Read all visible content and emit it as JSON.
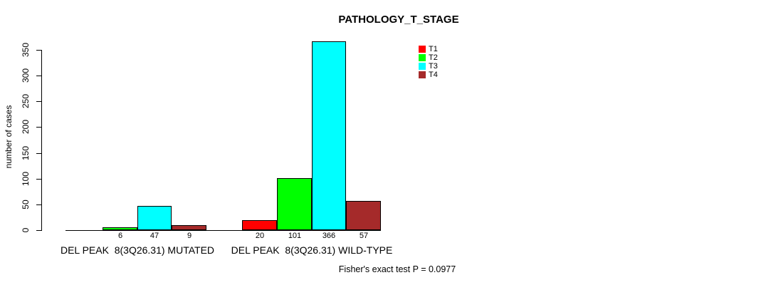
{
  "chart_data": {
    "type": "bar",
    "title": "PATHOLOGY_T_STAGE",
    "ylabel": "number of cases",
    "ylim": [
      0,
      350
    ],
    "yticks": [
      0,
      50,
      100,
      150,
      200,
      250,
      300,
      350
    ],
    "grid": false,
    "legend_position": "top-right-inside",
    "categories": [
      "DEL PEAK  8(3Q26.31) MUTATED",
      "DEL PEAK  8(3Q26.31) WILD-TYPE"
    ],
    "series": [
      {
        "name": "T1",
        "color": "#FF0000",
        "values": [
          0,
          20
        ]
      },
      {
        "name": "T2",
        "color": "#00FF00",
        "values": [
          6,
          101
        ]
      },
      {
        "name": "T3",
        "color": "#00FFFF",
        "values": [
          47,
          366
        ]
      },
      {
        "name": "T4",
        "color": "#A52A2A",
        "values": [
          9,
          57
        ]
      }
    ],
    "bar_value_labels": [
      [
        "",
        "6",
        "47",
        "9"
      ],
      [
        "20",
        "101",
        "366",
        "57"
      ]
    ],
    "annotation": "Fisher's exact test P = 0.0977",
    "axis_color": "#000000",
    "background": "#FFFFFF"
  }
}
